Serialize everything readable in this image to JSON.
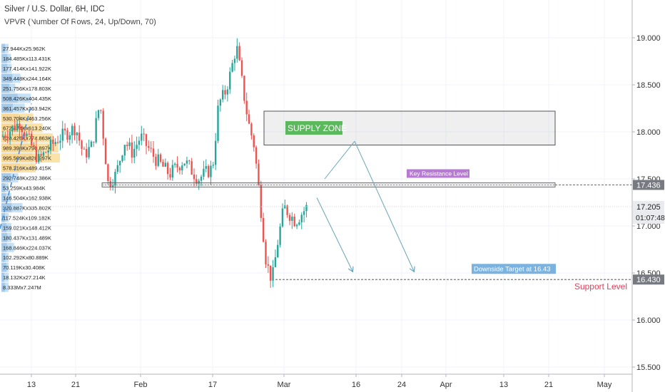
{
  "header": {
    "title": "Silver / U.S. Dollar, 6H, IDC",
    "indicator": "VPVR (Number Of Rows, 24, Up/Down, 70)"
  },
  "colors": {
    "up": "#26a69a",
    "down": "#ef5350",
    "vp_up": "#9fcdf0",
    "vp_down": "#5b9fd8",
    "value_area": "#f9d06d",
    "trendline": "#4a90d9",
    "arrow": "#6aa6b8",
    "support_label": "#e0405a",
    "resistance_tag": "#b77ad3",
    "supply_tag": "#5cb85c",
    "target_tag": "#7ab3e0"
  },
  "chart_data": {
    "type": "candlestick",
    "title": "Silver / U.S. Dollar, 6H, IDC",
    "xlabel": "",
    "ylabel": "",
    "x_ticks": [
      "13",
      "21",
      "Feb",
      "17",
      "Mar",
      "16",
      "24",
      "Apr",
      "13",
      "21",
      "May"
    ],
    "y_ticks": [
      "15.500",
      "16.000",
      "16.500",
      "17.000",
      "17.500",
      "18.000",
      "18.500",
      "19.000"
    ],
    "ylim": [
      15.45,
      19.25
    ],
    "price_segments": [
      {
        "from": "13",
        "to": "21",
        "path": [
          17.95,
          18.1,
          17.7,
          17.92,
          18.05
        ]
      },
      {
        "from": "21",
        "to": "Feb",
        "path": [
          18.05,
          17.75,
          17.85,
          18.32,
          17.45,
          17.55,
          17.9,
          17.78,
          17.95
        ]
      },
      {
        "from": "Feb",
        "to": "17",
        "path": [
          17.95,
          17.72,
          17.55,
          17.7,
          17.5,
          17.62
        ]
      },
      {
        "from": "17",
        "to": "Mar",
        "path": [
          17.62,
          18.3,
          18.4,
          18.62,
          18.92,
          18.5,
          18.1,
          17.85,
          17.25,
          16.62,
          16.42,
          16.85,
          17.2
        ]
      },
      {
        "from": "Mar",
        "to": "16",
        "path": [
          17.2,
          17.05,
          17.2
        ]
      }
    ],
    "volume_profile": [
      {
        "label": "27.944Kx25.962K",
        "up": 27.944,
        "down": 25.962
      },
      {
        "label": "184.485Kx113.431K",
        "up": 184.485,
        "down": 113.431
      },
      {
        "label": "177.414Kx141.922K",
        "up": 177.414,
        "down": 141.922
      },
      {
        "label": "349.448Kx244.164K",
        "up": 349.448,
        "down": 244.164
      },
      {
        "label": "251.756Kx178.803K",
        "up": 251.756,
        "down": 178.803
      },
      {
        "label": "508.426Kx404.435K",
        "up": 508.426,
        "down": 404.435
      },
      {
        "label": "361.457Kx363.942K",
        "up": 361.457,
        "down": 363.942
      },
      {
        "label": "530.704Kx463.256K",
        "up": 530.704,
        "down": 463.256
      },
      {
        "label": "672.474Kx613.240K",
        "up": 672.474,
        "down": 613.24
      },
      {
        "label": "828.426Kx774.863K",
        "up": 828.426,
        "down": 774.863
      },
      {
        "label": "989.398Kx790.897K",
        "up": 989.398,
        "down": 790.897
      },
      {
        "label": "995.509Kx828.997K",
        "up": 995.509,
        "down": 828.997
      },
      {
        "label": "578.316Kx489.415K",
        "up": 578.316,
        "down": 489.415
      },
      {
        "label": "292.748Kx232.386K",
        "up": 292.748,
        "down": 232.386
      },
      {
        "label": "53.259Kx43.984K",
        "up": 53.259,
        "down": 43.984
      },
      {
        "label": "146.504Kx162.938K",
        "up": 146.504,
        "down": 162.938
      },
      {
        "label": "320.887Kx335.802K",
        "up": 320.887,
        "down": 335.802
      },
      {
        "label": "117.524Kx109.182K",
        "up": 117.524,
        "down": 109.182
      },
      {
        "label": "159.021Kx148.412K",
        "up": 159.021,
        "down": 148.412
      },
      {
        "label": "180.437Kx131.489K",
        "up": 180.437,
        "down": 131.489
      },
      {
        "label": "168.846Kx224.037K",
        "up": 168.846,
        "down": 224.037
      },
      {
        "label": "102.292Kx80.889K",
        "up": 102.292,
        "down": 80.889
      },
      {
        "label": "70.119Kx30.408K",
        "up": 70.119,
        "down": 30.408
      },
      {
        "label": "18.132Kx27.214K",
        "up": 18.132,
        "down": 27.214
      },
      {
        "label": "8.333Mx7.247M",
        "up": 8.333,
        "down": 7.247
      }
    ],
    "levels": {
      "resistance": {
        "value": 17.436,
        "label": "17.436",
        "tag": "Key Resistance Level"
      },
      "support": {
        "value": 16.43,
        "label": "16.430",
        "tag": "Support Level"
      },
      "current": {
        "value": 17.205,
        "label": "17.205",
        "countdown": "01:07:48"
      }
    },
    "supply_zone": {
      "low": 17.86,
      "high": 18.22,
      "tag": "SUPPLY ZONE",
      "from": "Mar",
      "to": "May"
    },
    "downside_target": {
      "value": 16.43,
      "tag": "Downside Target at 16.43"
    },
    "trendline": {
      "from": {
        "x": "13",
        "y": 16.97
      },
      "to": {
        "x": "13",
        "y": 18.3
      }
    },
    "annotation_arrows": [
      {
        "from": {
          "x": "16",
          "y": 17.5
        },
        "to": {
          "x": "16",
          "y": 17.88
        }
      },
      {
        "from": {
          "x": "16",
          "y": 17.88
        },
        "to": {
          "x": "24",
          "y": 16.52
        }
      },
      {
        "from": {
          "x": "Mar",
          "y": 17.3
        },
        "to": {
          "x": "16",
          "y": 16.52
        }
      }
    ]
  }
}
